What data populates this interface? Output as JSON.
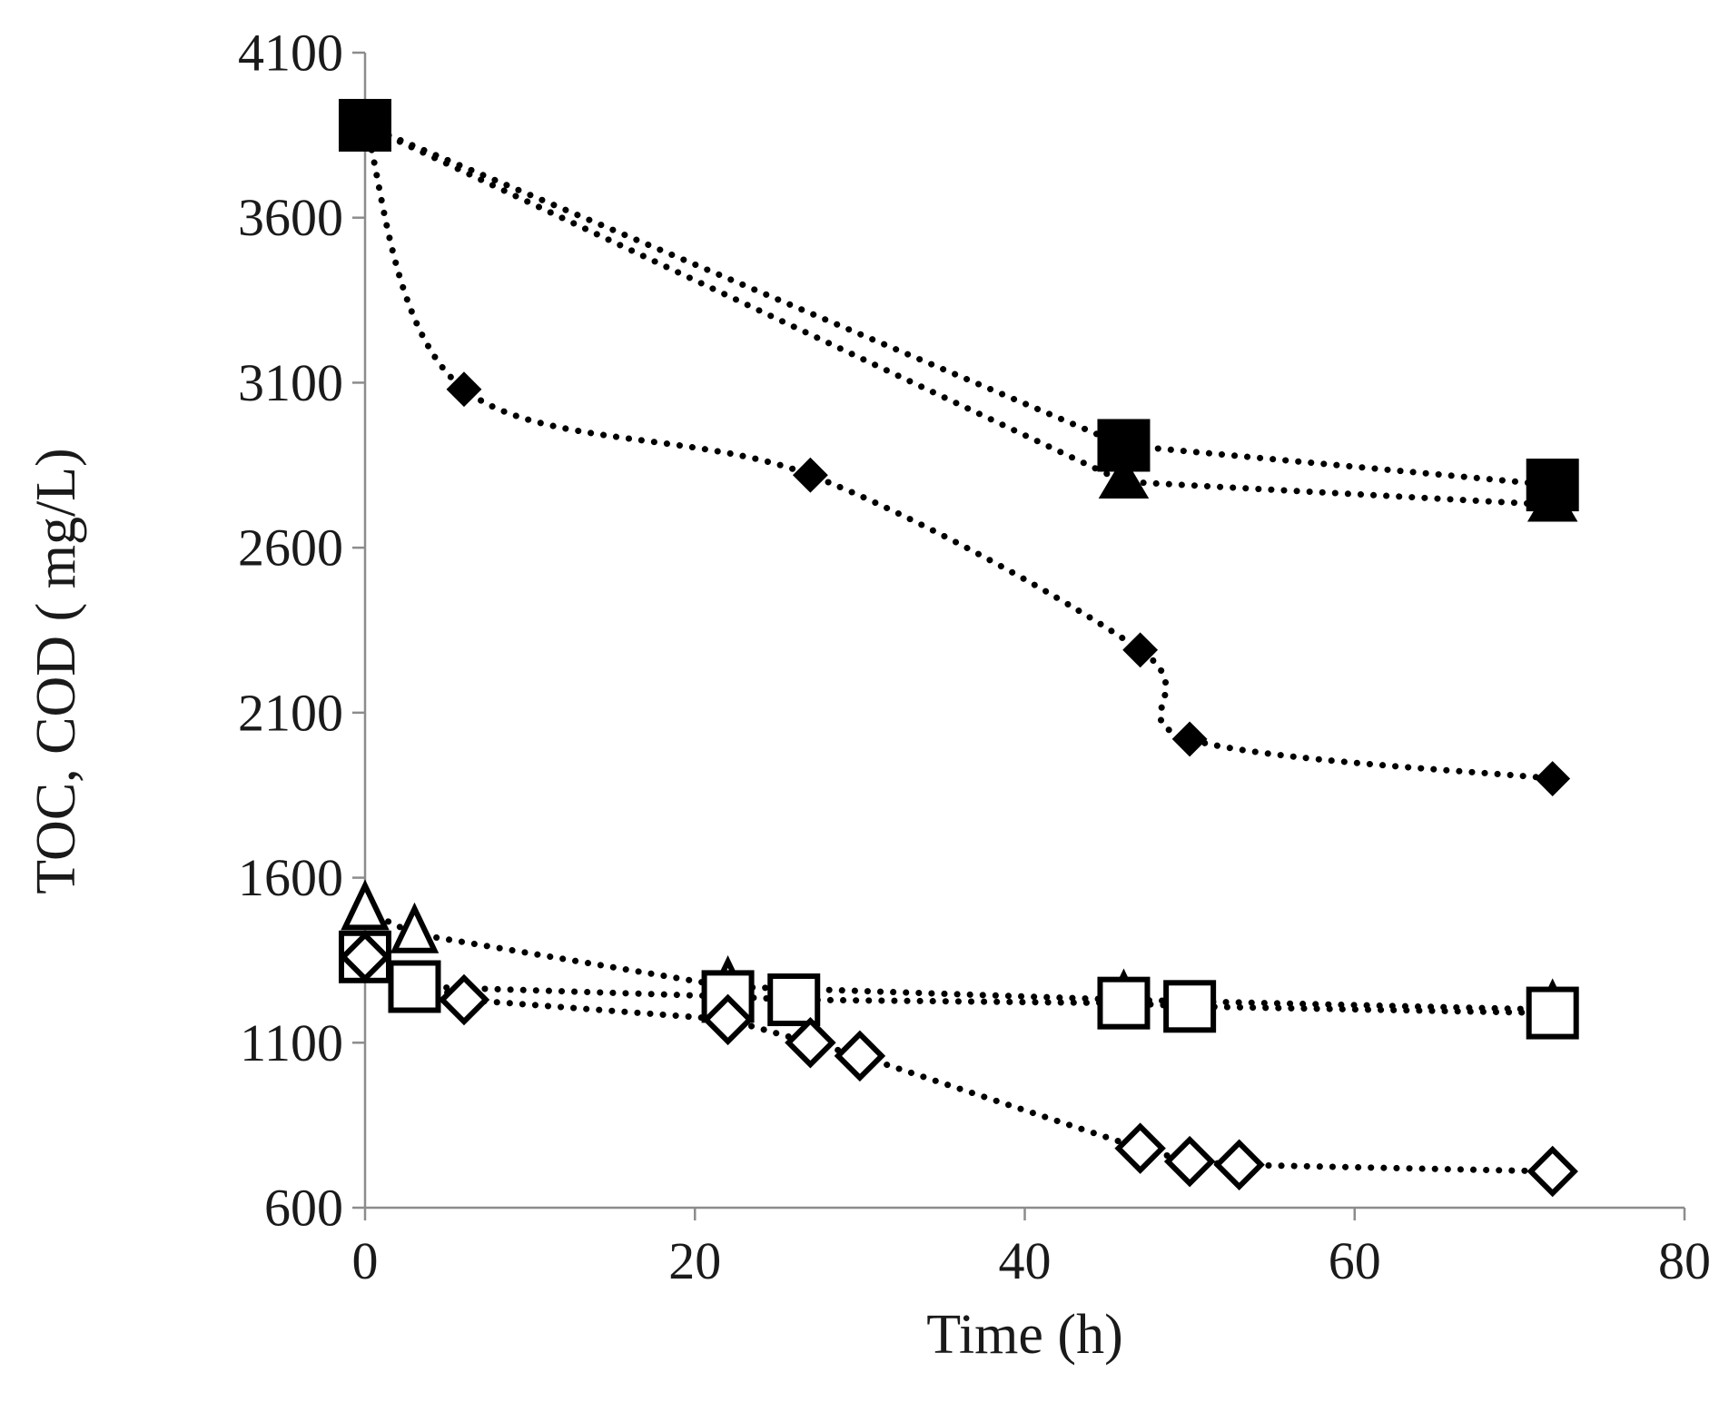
{
  "chart_data": {
    "type": "scatter",
    "title": "",
    "xlabel": "Time (h)",
    "ylabel": "TOC, COD ( mg/L)",
    "xlim": [
      0,
      80
    ],
    "ylim": [
      600,
      4100
    ],
    "xticks": [
      0,
      20,
      40,
      60,
      80
    ],
    "yticks": [
      600,
      1100,
      1600,
      2100,
      2600,
      3100,
      3600,
      4100
    ],
    "grid": false,
    "legend": "none",
    "series": [
      {
        "name": "COD (filled square)",
        "marker": "square",
        "filled": true,
        "smooth": false,
        "x": [
          0,
          46,
          72
        ],
        "y": [
          3880,
          2910,
          2790
        ]
      },
      {
        "name": "COD (filled triangle)",
        "marker": "triangle",
        "filled": true,
        "smooth": false,
        "x": [
          0,
          46,
          72
        ],
        "y": [
          3880,
          2800,
          2730
        ]
      },
      {
        "name": "COD (filled diamond)",
        "marker": "diamond",
        "filled": true,
        "smooth": true,
        "x": [
          0,
          6,
          27,
          47,
          50,
          72
        ],
        "y": [
          3880,
          3080,
          2820,
          2290,
          2020,
          1900
        ]
      },
      {
        "name": "TOC (open triangle)",
        "marker": "triangle",
        "filled": false,
        "smooth": false,
        "x": [
          0,
          3,
          22,
          46,
          72
        ],
        "y": [
          1500,
          1430,
          1270,
          1230,
          1200
        ]
      },
      {
        "name": "TOC (open square)",
        "marker": "square",
        "filled": false,
        "smooth": false,
        "x": [
          0,
          3,
          22,
          26,
          46,
          50,
          72
        ],
        "y": [
          1360,
          1270,
          1240,
          1230,
          1220,
          1210,
          1190
        ]
      },
      {
        "name": "TOC (open diamond)",
        "marker": "diamond",
        "filled": false,
        "smooth": false,
        "x": [
          0,
          6,
          22,
          27,
          30,
          47,
          50,
          53,
          72
        ],
        "y": [
          1360,
          1230,
          1170,
          1100,
          1060,
          780,
          740,
          730,
          710
        ]
      }
    ]
  }
}
